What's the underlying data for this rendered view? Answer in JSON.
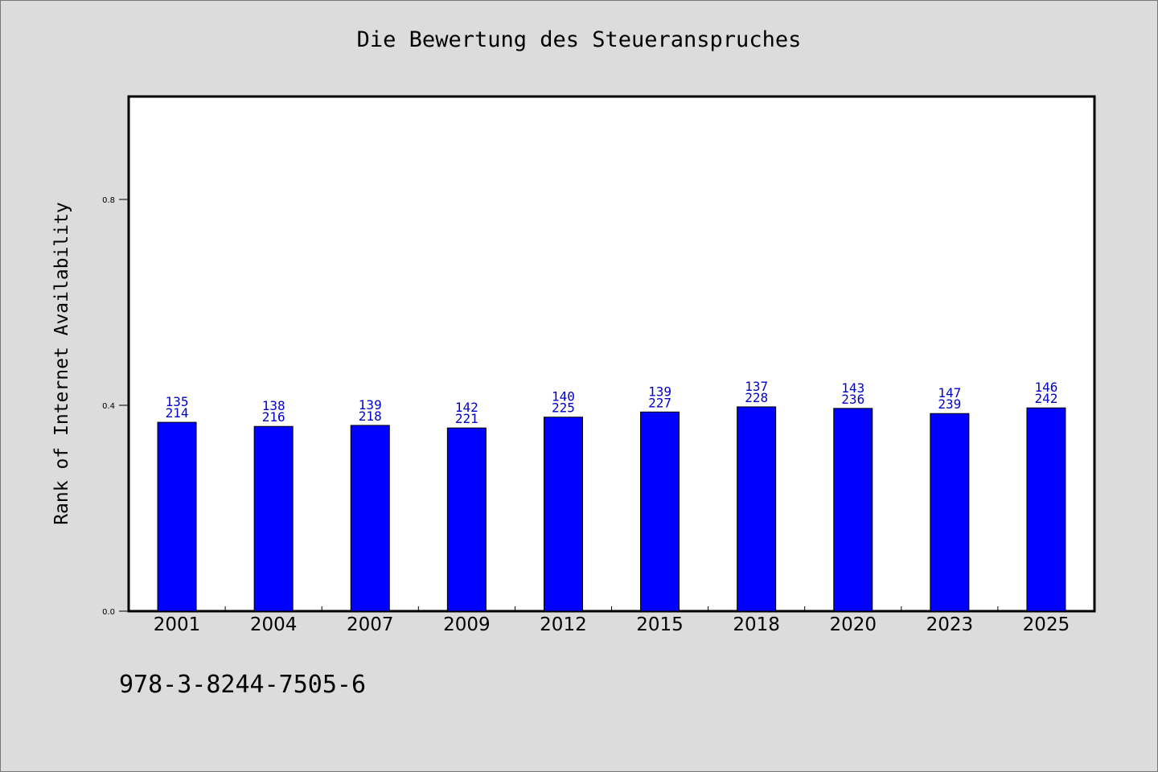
{
  "chart_data": {
    "type": "bar",
    "title": "Die Bewertung des Steueranspruches",
    "ylabel": "Rank of Internet Availability",
    "xlabel": "",
    "ylim": [
      0.0,
      1.0
    ],
    "yticks": [
      "0.0",
      "0.4",
      "0.8"
    ],
    "ytick_values": [
      0.0,
      0.4,
      0.8
    ],
    "grid": false,
    "categories": [
      "2001",
      "2004",
      "2007",
      "2009",
      "2012",
      "2015",
      "2018",
      "2020",
      "2023",
      "2025"
    ],
    "values": [
      0.367,
      0.359,
      0.361,
      0.356,
      0.377,
      0.387,
      0.397,
      0.394,
      0.384,
      0.395
    ],
    "label_top": [
      "135",
      "138",
      "139",
      "142",
      "140",
      "139",
      "137",
      "143",
      "147",
      "146"
    ],
    "label_bottom": [
      "214",
      "216",
      "218",
      "221",
      "225",
      "227",
      "228",
      "236",
      "239",
      "242"
    ],
    "bar_color": "#0000ff",
    "label_color": "#0000cc"
  },
  "footer": {
    "isbn": "978-3-8244-7505-6"
  }
}
